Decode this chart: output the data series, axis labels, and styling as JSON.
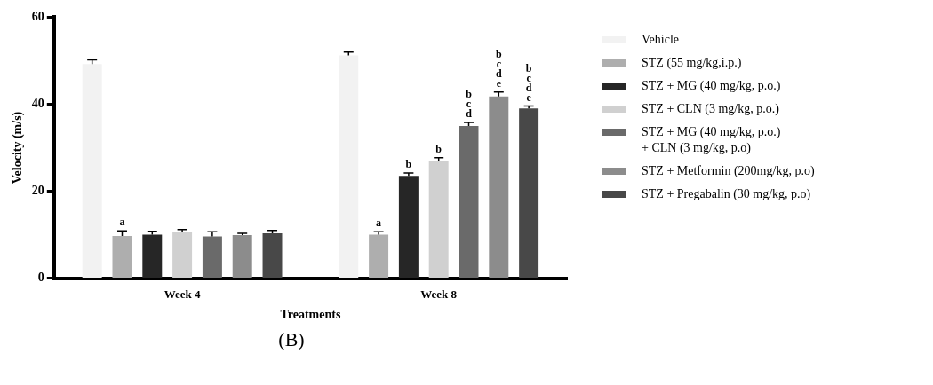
{
  "chart_data": {
    "type": "bar",
    "xlabel": "Treatments",
    "ylabel": "Velocity (m/s)",
    "categories": [
      "Week 4",
      "Week 8"
    ],
    "ylim": [
      0,
      60
    ],
    "yticks": [
      0,
      20,
      40,
      60
    ],
    "grid": false,
    "legend": "right",
    "annotations": [
      "(B)"
    ],
    "series": [
      {
        "name": "Vehicle",
        "color": "#f2f2f2",
        "values": [
          49.2,
          51.2
        ],
        "errors": [
          1,
          0.8
        ]
      },
      {
        "name": "STZ (55 mg/kg,i.p.)",
        "color": "#aeaeae",
        "values": [
          9.7,
          10
        ],
        "errors": [
          1.2,
          0.7
        ],
        "value_labels": [
          "a",
          "a"
        ]
      },
      {
        "name": "STZ + MG (40 mg/kg, p.o.)",
        "color": "#262626",
        "values": [
          10,
          23.5
        ],
        "errors": [
          0.8,
          0.7
        ],
        "value_labels": [
          null,
          "b"
        ]
      },
      {
        "name": "STZ + CLN (3 mg/kg, p.o.)",
        "color": "#d0d0d0",
        "values": [
          10.7,
          27
        ],
        "errors": [
          0.5,
          0.7
        ],
        "value_labels": [
          null,
          "b"
        ]
      },
      {
        "name": "STZ + MG (40 mg/kg, p.o.)\n+ CLN (3 mg/kg, p.o)",
        "color": "#6a6a6a",
        "values": [
          9.6,
          35
        ],
        "errors": [
          1.1,
          0.8
        ],
        "value_labels": [
          null,
          "bcd"
        ]
      },
      {
        "name": "STZ + Metformin (200mg/kg, p.o)",
        "color": "#8c8c8c",
        "values": [
          9.9,
          41.8
        ],
        "errors": [
          0.4,
          1
        ],
        "value_labels": [
          null,
          "bcde"
        ]
      },
      {
        "name": "STZ + Pregabalin (30 mg/kg, p.o)",
        "color": "#484848",
        "values": [
          10.3,
          39
        ],
        "errors": [
          0.7,
          0.6
        ],
        "value_labels": [
          null,
          "bcde"
        ]
      }
    ]
  }
}
